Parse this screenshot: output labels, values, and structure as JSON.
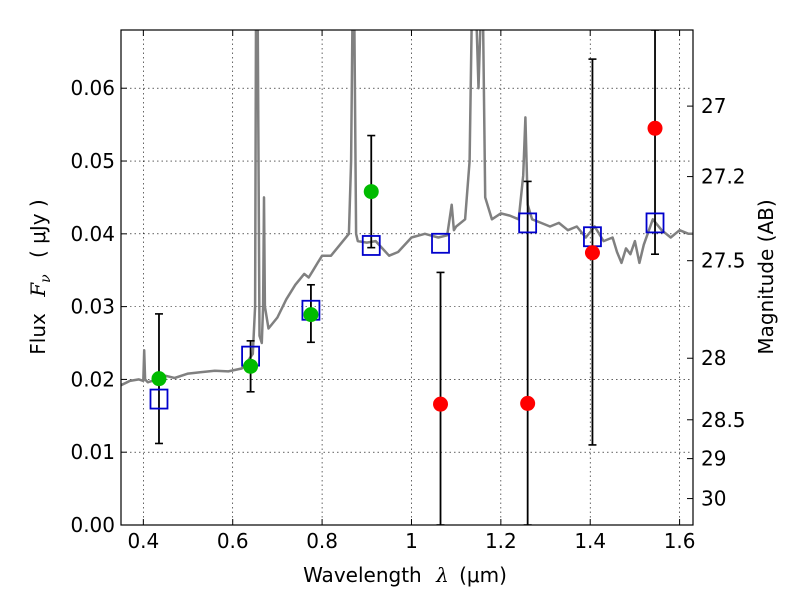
{
  "chart_data": {
    "type": "scatter",
    "xlabel": {
      "prefix": "Wavelength",
      "symbol": "λ",
      "unit": "(μm)"
    },
    "ylabel": {
      "prefix": "Flux",
      "symbol": "F",
      "subscript": "ν",
      "unit": "( μJy )"
    },
    "y2label": "Magnitude (AB)",
    "xlim": [
      0.35,
      1.63
    ],
    "ylim": [
      0.0,
      0.068
    ],
    "grid": true,
    "xticks": [
      0.4,
      0.6,
      0.8,
      1.0,
      1.2,
      1.4,
      1.6
    ],
    "xtick_labels": [
      "0.4",
      "0.6",
      "0.8",
      "1",
      "1.2",
      "1.4",
      "1.6"
    ],
    "yticks": [
      0.0,
      0.01,
      0.02,
      0.03,
      0.04,
      0.05,
      0.06
    ],
    "ytick_labels": [
      "0.00",
      "0.01",
      "0.02",
      "0.03",
      "0.04",
      "0.05",
      "0.06"
    ],
    "y2ticks": [
      {
        "mag": 27,
        "label": "27"
      },
      {
        "mag": 27.2,
        "label": "27.2"
      },
      {
        "mag": 27.5,
        "label": "27.5"
      },
      {
        "mag": 28,
        "label": "28"
      },
      {
        "mag": 28.5,
        "label": "28.5"
      },
      {
        "mag": 29,
        "label": "29"
      },
      {
        "mag": 30,
        "label": "30"
      }
    ],
    "colors": {
      "model": "#808080",
      "detected": "#00bb00",
      "undetected": "#ff0000",
      "model_band": "#0000cc",
      "errorbar": "#000000"
    },
    "model_spectrum": {
      "name": "model spectrum",
      "points": [
        [
          0.35,
          0.0192
        ],
        [
          0.37,
          0.0198
        ],
        [
          0.39,
          0.02
        ],
        [
          0.4,
          0.0198
        ],
        [
          0.402,
          0.024
        ],
        [
          0.404,
          0.02
        ],
        [
          0.41,
          0.0196
        ],
        [
          0.43,
          0.02
        ],
        [
          0.45,
          0.0205
        ],
        [
          0.47,
          0.0202
        ],
        [
          0.5,
          0.0208
        ],
        [
          0.53,
          0.021
        ],
        [
          0.56,
          0.0212
        ],
        [
          0.59,
          0.0211
        ],
        [
          0.62,
          0.0215
        ],
        [
          0.63,
          0.0222
        ],
        [
          0.645,
          0.0235
        ],
        [
          0.65,
          0.03
        ],
        [
          0.652,
          0.07
        ],
        [
          0.656,
          0.07
        ],
        [
          0.66,
          0.026
        ],
        [
          0.665,
          0.025
        ],
        [
          0.668,
          0.03
        ],
        [
          0.67,
          0.045
        ],
        [
          0.672,
          0.03
        ],
        [
          0.68,
          0.027
        ],
        [
          0.7,
          0.0285
        ],
        [
          0.72,
          0.031
        ],
        [
          0.74,
          0.033
        ],
        [
          0.76,
          0.0345
        ],
        [
          0.77,
          0.034
        ],
        [
          0.78,
          0.035
        ],
        [
          0.79,
          0.036
        ],
        [
          0.8,
          0.037
        ],
        [
          0.82,
          0.037
        ],
        [
          0.84,
          0.0385
        ],
        [
          0.86,
          0.04
        ],
        [
          0.865,
          0.05
        ],
        [
          0.868,
          0.07
        ],
        [
          0.872,
          0.07
        ],
        [
          0.876,
          0.04
        ],
        [
          0.88,
          0.039
        ],
        [
          0.9,
          0.0388
        ],
        [
          0.92,
          0.039
        ],
        [
          0.95,
          0.037
        ],
        [
          0.97,
          0.0375
        ],
        [
          1.0,
          0.0395
        ],
        [
          1.03,
          0.04
        ],
        [
          1.06,
          0.0395
        ],
        [
          1.08,
          0.0398
        ],
        [
          1.09,
          0.044
        ],
        [
          1.095,
          0.0405
        ],
        [
          1.1,
          0.041
        ],
        [
          1.12,
          0.042
        ],
        [
          1.13,
          0.05
        ],
        [
          1.135,
          0.07
        ],
        [
          1.145,
          0.07
        ],
        [
          1.15,
          0.06
        ],
        [
          1.155,
          0.07
        ],
        [
          1.16,
          0.07
        ],
        [
          1.165,
          0.045
        ],
        [
          1.18,
          0.042
        ],
        [
          1.2,
          0.0428
        ],
        [
          1.22,
          0.0425
        ],
        [
          1.24,
          0.042
        ],
        [
          1.25,
          0.048
        ],
        [
          1.255,
          0.056
        ],
        [
          1.26,
          0.044
        ],
        [
          1.27,
          0.042
        ],
        [
          1.29,
          0.0415
        ],
        [
          1.31,
          0.041
        ],
        [
          1.33,
          0.0415
        ],
        [
          1.35,
          0.0405
        ],
        [
          1.37,
          0.041
        ],
        [
          1.39,
          0.0395
        ],
        [
          1.41,
          0.041
        ],
        [
          1.43,
          0.039
        ],
        [
          1.45,
          0.0395
        ],
        [
          1.46,
          0.0375
        ],
        [
          1.47,
          0.036
        ],
        [
          1.48,
          0.038
        ],
        [
          1.49,
          0.0372
        ],
        [
          1.5,
          0.039
        ],
        [
          1.51,
          0.036
        ],
        [
          1.52,
          0.0385
        ],
        [
          1.54,
          0.042
        ],
        [
          1.56,
          0.0405
        ],
        [
          1.58,
          0.0395
        ],
        [
          1.6,
          0.0405
        ],
        [
          1.62,
          0.04
        ],
        [
          1.63,
          0.04
        ]
      ]
    },
    "model_photometry": {
      "name": "model band flux",
      "points": [
        {
          "x": 0.435,
          "y": 0.0173
        },
        {
          "x": 0.64,
          "y": 0.0232
        },
        {
          "x": 0.775,
          "y": 0.0295
        },
        {
          "x": 0.91,
          "y": 0.0384
        },
        {
          "x": 1.065,
          "y": 0.0387
        },
        {
          "x": 1.26,
          "y": 0.0415
        },
        {
          "x": 1.405,
          "y": 0.0396
        },
        {
          "x": 1.545,
          "y": 0.0415
        }
      ]
    },
    "observed": {
      "name": "observed photometry",
      "points": [
        {
          "x": 0.435,
          "y": 0.0201,
          "lo": 0.0112,
          "hi": 0.029,
          "detected": true
        },
        {
          "x": 0.64,
          "y": 0.0218,
          "lo": 0.0183,
          "hi": 0.0253,
          "detected": true
        },
        {
          "x": 0.775,
          "y": 0.0289,
          "lo": 0.0251,
          "hi": 0.033,
          "detected": true
        },
        {
          "x": 0.91,
          "y": 0.0458,
          "lo": 0.0381,
          "hi": 0.0535,
          "detected": true
        },
        {
          "x": 1.065,
          "y": 0.0166,
          "lo": 0.0,
          "hi": 0.0347,
          "detected": false
        },
        {
          "x": 1.26,
          "y": 0.0167,
          "lo": 0.0,
          "hi": 0.0472,
          "detected": false
        },
        {
          "x": 1.405,
          "y": 0.0374,
          "lo": 0.011,
          "hi": 0.064,
          "detected": false
        },
        {
          "x": 1.545,
          "y": 0.0545,
          "lo": 0.0372,
          "hi": 0.068,
          "detected": false
        }
      ]
    }
  }
}
